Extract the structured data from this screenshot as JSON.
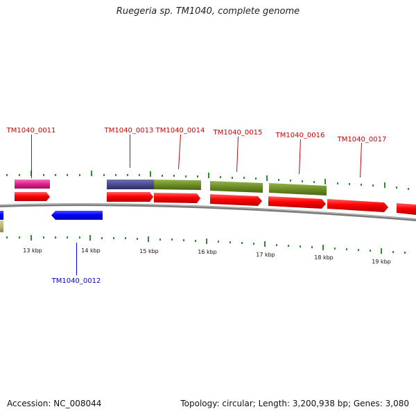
{
  "title": "Ruegeria sp. TM1040, complete genome",
  "footer": {
    "accession": "Accession: NC_008044",
    "summary": "Topology: circular; Length: 3,200,938 bp; Genes: 3,080"
  },
  "scale_labels": [
    "13 kbp",
    "14 kbp",
    "15 kbp",
    "16 kbp",
    "17 kbp",
    "18 kbp",
    "19 kbp"
  ],
  "gene_labels": {
    "g11": "TM1040_0011",
    "g12": "TM1040_0012",
    "g13": "TM1040_0013",
    "g14": "TM1040_0014",
    "g15": "TM1040_0015",
    "g16": "TM1040_0016",
    "g17": "TM1040_0017"
  },
  "colors": {
    "forward_gene": "#ff0000",
    "reverse_gene": "#0000ff",
    "forward_label": "#cc0000",
    "reverse_label": "#0000cc",
    "magenta_cog": "#e0208c",
    "navy_cog": "#4b4b8f",
    "olive_cog": "#6b8e23",
    "khaki_cog": "#b8b878",
    "tick": "#2e8b2e",
    "backbone": "#808080"
  }
}
